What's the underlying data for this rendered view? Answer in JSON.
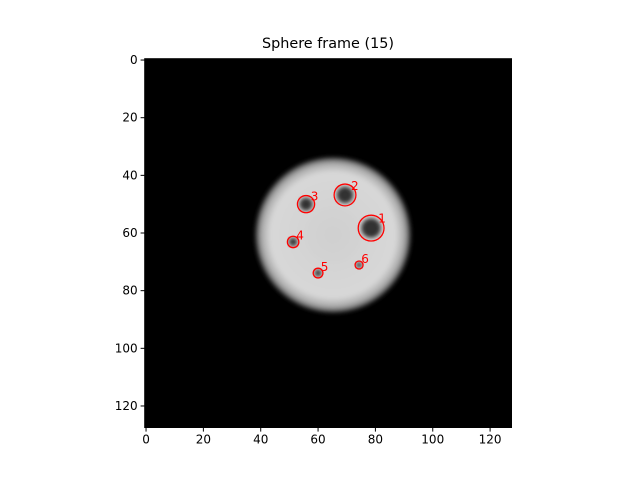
{
  "chart_data": {
    "type": "image",
    "title": "Sphere frame (15)",
    "xlim": [
      -0.5,
      127.5
    ],
    "ylim": [
      127.5,
      -0.5
    ],
    "xticks": [
      0,
      20,
      40,
      60,
      80,
      100,
      120
    ],
    "yticks": [
      0,
      20,
      40,
      60,
      80,
      100,
      120
    ],
    "color": "#ff0000",
    "spots": [
      {
        "label": "1",
        "x": 78.5,
        "y": 58.3,
        "r": 4.5
      },
      {
        "label": "2",
        "x": 69.4,
        "y": 46.8,
        "r": 3.8
      },
      {
        "label": "3",
        "x": 55.8,
        "y": 50,
        "r": 3
      },
      {
        "label": "4",
        "x": 51.3,
        "y": 63.1,
        "r": 2
      },
      {
        "label": "5",
        "x": 60,
        "y": 73.9,
        "r": 1.7
      },
      {
        "label": "6",
        "x": 74.3,
        "y": 71.1,
        "r": 1.4
      }
    ]
  }
}
